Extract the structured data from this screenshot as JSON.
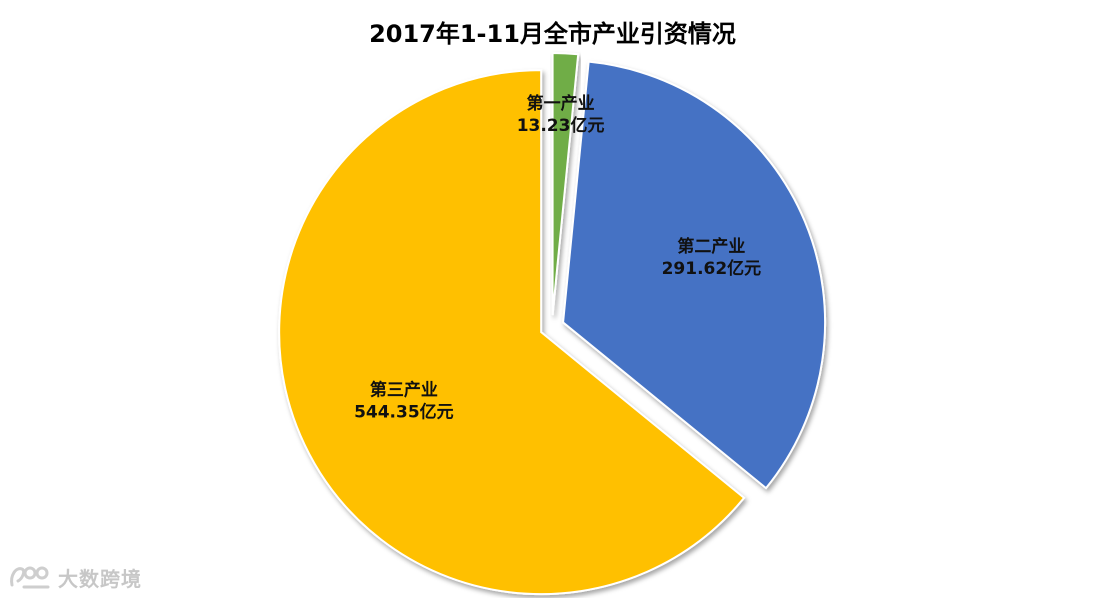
{
  "chart_data": {
    "type": "pie",
    "title": "2017年1-11月全市产业引资情况",
    "unit": "亿元",
    "exploded": true,
    "slices": [
      {
        "name": "第一产业",
        "value": 13.23,
        "value_label": "13.23亿元",
        "color": "#70AD47"
      },
      {
        "name": "第二产业",
        "value": 291.62,
        "value_label": "291.62亿元",
        "color": "#4472C4"
      },
      {
        "name": "第三产业",
        "value": 544.35,
        "value_label": "544.35亿元",
        "color": "#FFC000"
      }
    ]
  },
  "watermark": {
    "text": "大数跨境",
    "icon": "dashuju-logo-icon"
  }
}
